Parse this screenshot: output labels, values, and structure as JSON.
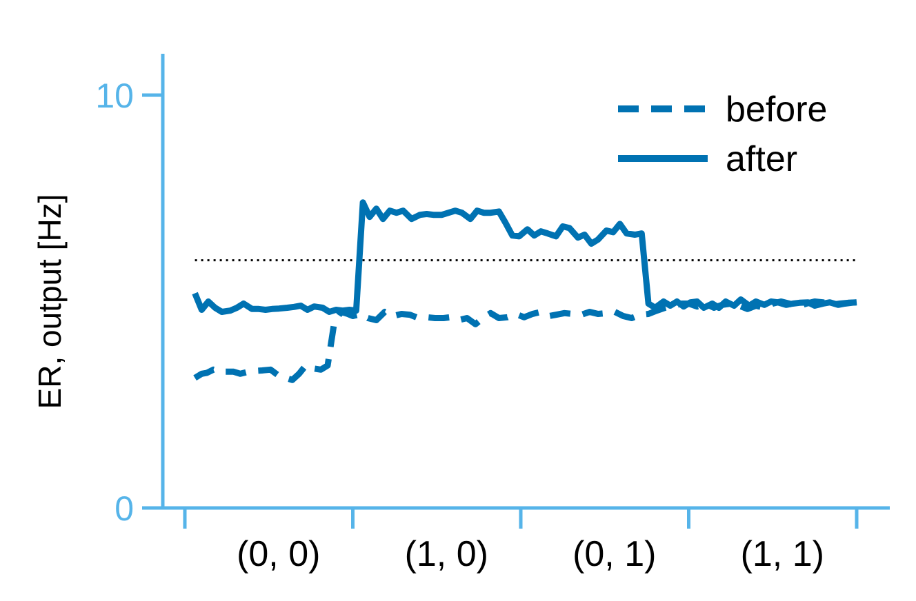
{
  "chart_data": {
    "type": "line",
    "ylabel": "ER, output [Hz]",
    "xlabel": "",
    "ylim": [
      0,
      11
    ],
    "xlim": [
      0,
      4
    ],
    "y_ticks": [
      0,
      10
    ],
    "y_tick_labels": [
      "0",
      "10"
    ],
    "x_tick_positions": [
      0,
      1,
      2,
      3,
      4
    ],
    "categories": [
      "(0, 0)",
      "(1, 0)",
      "(0, 1)",
      "(1, 1)"
    ],
    "grid": false,
    "legend_placement": "top-right",
    "reference_line": {
      "y": 6.0,
      "style": "dotted",
      "color": "#000000"
    },
    "colors": {
      "axis": "#56B4E9",
      "series": "#0072B2"
    },
    "series": [
      {
        "name": "before",
        "style": "dashed",
        "x": [
          0.06,
          0.1,
          0.13,
          0.17,
          0.21,
          0.25,
          0.29,
          0.33,
          0.38,
          0.42,
          0.46,
          0.51,
          0.56,
          0.6,
          0.64,
          0.68,
          0.72,
          0.76,
          0.81,
          0.85,
          0.89,
          0.93,
          0.97,
          1.0,
          1.05,
          1.09,
          1.14,
          1.19,
          1.24,
          1.29,
          1.34,
          1.39,
          1.44,
          1.49,
          1.54,
          1.58,
          1.63,
          1.68,
          1.73,
          1.78,
          1.82,
          1.87,
          1.92,
          1.97,
          2.02,
          2.07,
          2.12,
          2.17,
          2.21,
          2.26,
          2.31,
          2.36,
          2.41,
          2.46,
          2.51,
          2.56,
          2.61,
          2.66,
          2.71,
          2.76,
          2.81,
          2.86,
          2.91,
          2.96,
          3.0,
          3.05,
          3.1,
          3.15,
          3.2,
          3.25,
          3.3,
          3.35,
          3.4,
          3.45,
          3.5,
          3.55,
          3.6,
          3.65,
          3.7,
          3.75,
          3.8,
          3.85,
          3.9,
          3.95,
          4.0
        ],
        "values": [
          3.15,
          3.25,
          3.27,
          3.35,
          3.3,
          3.3,
          3.3,
          3.25,
          3.3,
          3.32,
          3.33,
          3.35,
          3.2,
          3.15,
          3.1,
          3.25,
          3.45,
          3.38,
          3.35,
          3.45,
          4.5,
          4.75,
          4.7,
          4.65,
          4.7,
          4.6,
          4.55,
          4.75,
          4.65,
          4.7,
          4.68,
          4.6,
          4.62,
          4.6,
          4.6,
          4.62,
          4.55,
          4.6,
          4.45,
          4.62,
          4.72,
          4.6,
          4.62,
          4.7,
          4.62,
          4.7,
          4.75,
          4.65,
          4.68,
          4.72,
          4.7,
          4.68,
          4.75,
          4.7,
          4.72,
          4.75,
          4.65,
          4.6,
          4.68,
          4.7,
          4.78,
          4.85,
          4.9,
          4.95,
          4.95,
          4.88,
          4.95,
          4.85,
          4.92,
          4.95,
          4.9,
          4.82,
          4.9,
          4.85,
          4.95,
          5.0,
          4.95,
          4.88,
          4.95,
          5.0,
          4.98,
          4.92,
          4.95,
          4.97,
          4.98
        ]
      },
      {
        "name": "after",
        "style": "solid",
        "x": [
          0.06,
          0.1,
          0.14,
          0.18,
          0.22,
          0.27,
          0.31,
          0.35,
          0.4,
          0.44,
          0.48,
          0.52,
          0.56,
          0.61,
          0.65,
          0.69,
          0.73,
          0.77,
          0.82,
          0.86,
          0.9,
          0.94,
          0.98,
          1.02,
          1.06,
          1.1,
          1.14,
          1.18,
          1.22,
          1.26,
          1.3,
          1.35,
          1.4,
          1.44,
          1.48,
          1.53,
          1.57,
          1.61,
          1.65,
          1.7,
          1.74,
          1.78,
          1.82,
          1.87,
          1.91,
          1.95,
          1.99,
          2.04,
          2.08,
          2.12,
          2.16,
          2.21,
          2.25,
          2.29,
          2.34,
          2.38,
          2.42,
          2.46,
          2.51,
          2.55,
          2.59,
          2.63,
          2.68,
          2.72,
          2.76,
          2.8,
          2.85,
          2.89,
          2.93,
          2.97,
          3.01,
          3.05,
          3.09,
          3.14,
          3.18,
          3.22,
          3.27,
          3.31,
          3.36,
          3.4,
          3.45,
          3.49,
          3.53,
          3.58,
          3.62,
          3.66,
          3.71,
          3.75,
          3.8,
          3.84,
          3.89,
          3.93,
          3.97,
          4.0
        ],
        "values": [
          5.2,
          4.8,
          5.0,
          4.85,
          4.75,
          4.78,
          4.85,
          4.95,
          4.82,
          4.82,
          4.8,
          4.82,
          4.83,
          4.85,
          4.87,
          4.9,
          4.8,
          4.88,
          4.85,
          4.75,
          4.8,
          4.78,
          4.8,
          4.78,
          7.4,
          7.05,
          7.25,
          7.0,
          7.2,
          7.15,
          7.2,
          7.0,
          7.1,
          7.12,
          7.1,
          7.1,
          7.15,
          7.2,
          7.15,
          7.0,
          7.2,
          7.15,
          7.15,
          7.18,
          6.9,
          6.6,
          6.58,
          6.75,
          6.6,
          6.7,
          6.65,
          6.58,
          6.82,
          6.78,
          6.55,
          6.62,
          6.4,
          6.5,
          6.72,
          6.68,
          6.88,
          6.65,
          6.62,
          6.65,
          4.95,
          4.85,
          5.0,
          4.9,
          5.0,
          4.88,
          4.98,
          5.0,
          4.85,
          4.95,
          4.85,
          5.0,
          4.9,
          5.05,
          4.9,
          5.0,
          4.92,
          5.0,
          4.98,
          4.92,
          4.95,
          4.97,
          4.98,
          4.9,
          4.95,
          4.98,
          4.92,
          4.95,
          4.97,
          4.98
        ]
      }
    ]
  }
}
